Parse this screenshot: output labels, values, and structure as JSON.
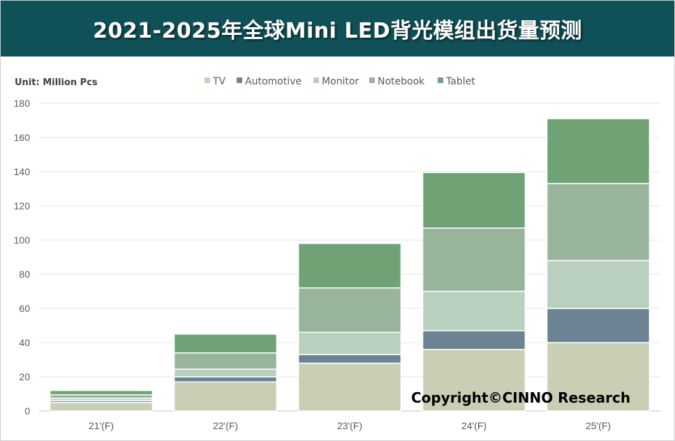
{
  "title": "2021-2025年全球Mini LED背光模组出货量预测",
  "chart_data": {
    "type": "bar",
    "stacked": true,
    "ylabel": "Unit: Million Pcs",
    "ylim": [
      0,
      180
    ],
    "yticks": [
      0,
      20,
      40,
      60,
      80,
      100,
      120,
      140,
      160,
      180
    ],
    "grid": true,
    "legend_position": "top",
    "categories": [
      "21'(F)",
      "22'(F)",
      "23'(F)",
      "24'(F)",
      "25'(F)"
    ],
    "series": [
      {
        "name": "TV",
        "color": "#c9cfb5",
        "values": [
          5,
          17,
          28,
          36,
          40
        ]
      },
      {
        "name": "Automotive",
        "color": "#6b8392",
        "values": [
          1,
          3,
          5,
          11,
          20
        ]
      },
      {
        "name": "Monitor",
        "color": "#b8d0bd",
        "values": [
          1.5,
          4.5,
          13,
          23,
          28
        ]
      },
      {
        "name": "Notebook",
        "color": "#98b59c",
        "values": [
          2,
          9.5,
          26,
          37,
          45
        ]
      },
      {
        "name": "Tablet",
        "color": "#6fa376",
        "values": [
          2.5,
          11,
          26,
          32.5,
          38
        ]
      }
    ],
    "annotation": "Copyright©CINNO Research"
  }
}
